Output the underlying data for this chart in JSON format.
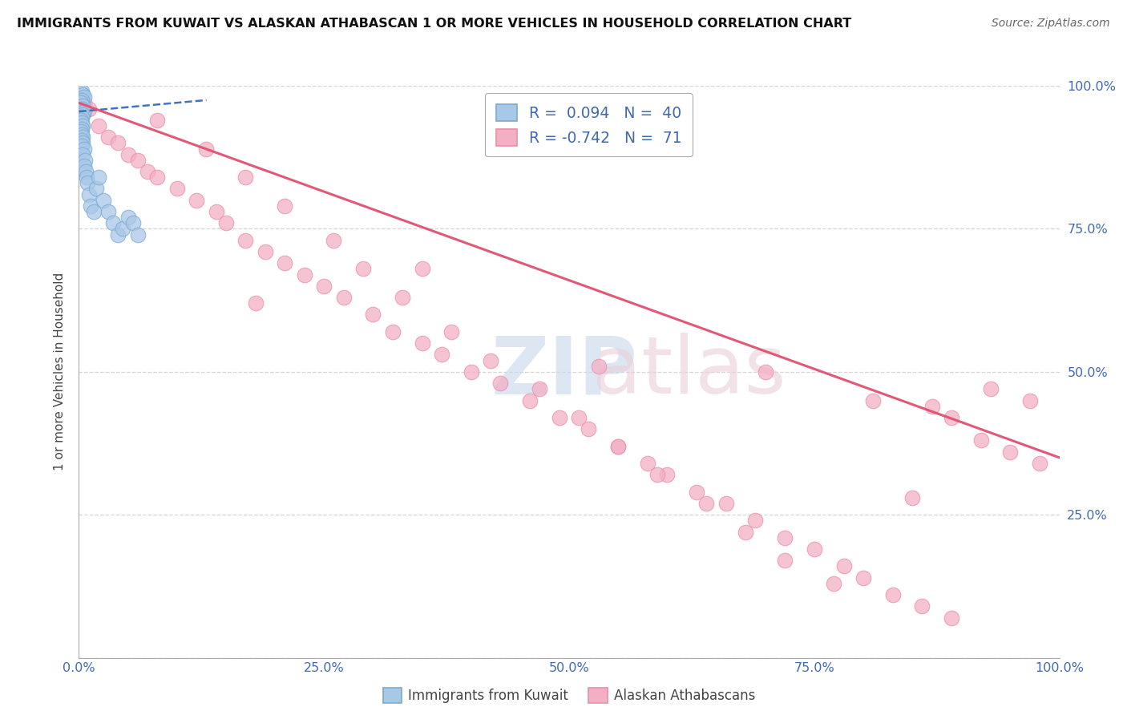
{
  "title": "IMMIGRANTS FROM KUWAIT VS ALASKAN ATHABASCAN 1 OR MORE VEHICLES IN HOUSEHOLD CORRELATION CHART",
  "source": "Source: ZipAtlas.com",
  "ylabel": "1 or more Vehicles in Household",
  "xlim": [
    0.0,
    1.0
  ],
  "ylim": [
    0.0,
    1.0
  ],
  "blue_color": "#a8c8e8",
  "pink_color": "#f4afc4",
  "blue_edge_color": "#7aaad0",
  "pink_edge_color": "#e890aa",
  "blue_line_color": "#3a6abf",
  "pink_line_color": "#e05070",
  "tick_color": "#4169b0",
  "grid_color": "#cccccc",
  "background_color": "#ffffff",
  "blue_scatter_x": [
    0.003,
    0.004,
    0.005,
    0.003,
    0.002,
    0.004,
    0.003,
    0.005,
    0.004,
    0.003,
    0.002,
    0.003,
    0.004,
    0.003,
    0.002,
    0.003,
    0.004,
    0.003,
    0.004,
    0.003,
    0.005,
    0.004,
    0.006,
    0.005,
    0.007,
    0.008,
    0.009,
    0.01,
    0.012,
    0.015,
    0.018,
    0.02,
    0.025,
    0.03,
    0.035,
    0.04,
    0.045,
    0.05,
    0.055,
    0.06
  ],
  "blue_scatter_y": [
    0.99,
    0.985,
    0.98,
    0.975,
    0.97,
    0.965,
    0.96,
    0.955,
    0.95,
    0.945,
    0.94,
    0.935,
    0.93,
    0.925,
    0.92,
    0.915,
    0.91,
    0.905,
    0.9,
    0.895,
    0.89,
    0.88,
    0.87,
    0.86,
    0.85,
    0.84,
    0.83,
    0.81,
    0.79,
    0.78,
    0.82,
    0.84,
    0.8,
    0.78,
    0.76,
    0.74,
    0.75,
    0.77,
    0.76,
    0.74
  ],
  "blue_line_x": [
    0.0,
    0.13
  ],
  "blue_line_y": [
    0.955,
    0.975
  ],
  "pink_scatter_x": [
    0.005,
    0.01,
    0.02,
    0.03,
    0.04,
    0.05,
    0.06,
    0.07,
    0.08,
    0.1,
    0.12,
    0.14,
    0.15,
    0.17,
    0.19,
    0.21,
    0.23,
    0.25,
    0.27,
    0.3,
    0.32,
    0.35,
    0.37,
    0.4,
    0.43,
    0.46,
    0.49,
    0.52,
    0.55,
    0.58,
    0.6,
    0.63,
    0.66,
    0.69,
    0.72,
    0.75,
    0.78,
    0.8,
    0.83,
    0.86,
    0.89,
    0.92,
    0.95,
    0.98,
    0.08,
    0.13,
    0.17,
    0.21,
    0.26,
    0.29,
    0.33,
    0.38,
    0.42,
    0.47,
    0.51,
    0.55,
    0.59,
    0.64,
    0.68,
    0.72,
    0.77,
    0.81,
    0.85,
    0.89,
    0.93,
    0.97,
    0.18,
    0.35,
    0.53,
    0.7,
    0.87
  ],
  "pink_scatter_y": [
    0.97,
    0.96,
    0.93,
    0.91,
    0.9,
    0.88,
    0.87,
    0.85,
    0.84,
    0.82,
    0.8,
    0.78,
    0.76,
    0.73,
    0.71,
    0.69,
    0.67,
    0.65,
    0.63,
    0.6,
    0.57,
    0.55,
    0.53,
    0.5,
    0.48,
    0.45,
    0.42,
    0.4,
    0.37,
    0.34,
    0.32,
    0.29,
    0.27,
    0.24,
    0.21,
    0.19,
    0.16,
    0.14,
    0.11,
    0.09,
    0.07,
    0.38,
    0.36,
    0.34,
    0.94,
    0.89,
    0.84,
    0.79,
    0.73,
    0.68,
    0.63,
    0.57,
    0.52,
    0.47,
    0.42,
    0.37,
    0.32,
    0.27,
    0.22,
    0.17,
    0.13,
    0.45,
    0.28,
    0.42,
    0.47,
    0.45,
    0.62,
    0.68,
    0.51,
    0.5,
    0.44
  ],
  "pink_line_x": [
    0.0,
    1.0
  ],
  "pink_line_y": [
    0.97,
    0.35
  ]
}
